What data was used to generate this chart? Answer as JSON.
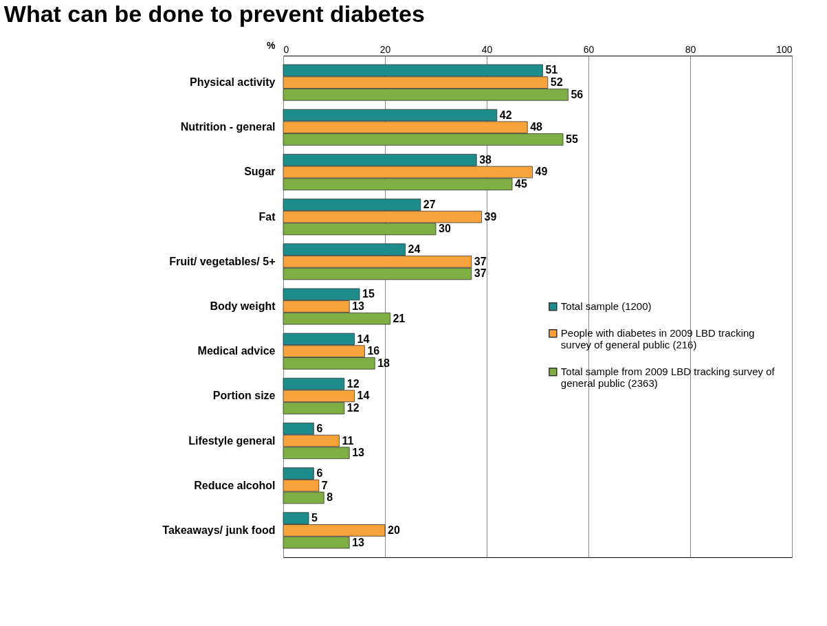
{
  "chart_data": {
    "type": "bar",
    "orientation": "horizontal",
    "title": "What can be done to prevent diabetes",
    "xlabel": "%",
    "categories": [
      "Physical activity",
      "Nutrition - general",
      "Sugar",
      "Fat",
      "Fruit/ vegetables/ 5+",
      "Body weight",
      "Medical advice",
      "Portion size",
      "Lifestyle general",
      "Reduce alcohol",
      "Takeaways/ junk food"
    ],
    "series": [
      {
        "name": "Total sample (1200)",
        "color": "#1f8c8c",
        "values": [
          51,
          42,
          38,
          27,
          24,
          15,
          14,
          12,
          6,
          6,
          5
        ]
      },
      {
        "name": "People with diabetes in 2009 LBD tracking survey of general public (216)",
        "color": "#f5a33a",
        "values": [
          52,
          48,
          49,
          39,
          37,
          13,
          16,
          14,
          11,
          7,
          20
        ]
      },
      {
        "name": "Total sample from 2009 LBD tracking survey of general public (2363)",
        "color": "#7fae44",
        "values": [
          56,
          55,
          45,
          30,
          37,
          21,
          18,
          12,
          13,
          8,
          13
        ]
      }
    ],
    "xlim": [
      0,
      100
    ],
    "xticks": [
      0,
      20,
      40,
      60,
      80,
      100
    ],
    "grid": "x",
    "legend": "right",
    "data_labels": true
  }
}
